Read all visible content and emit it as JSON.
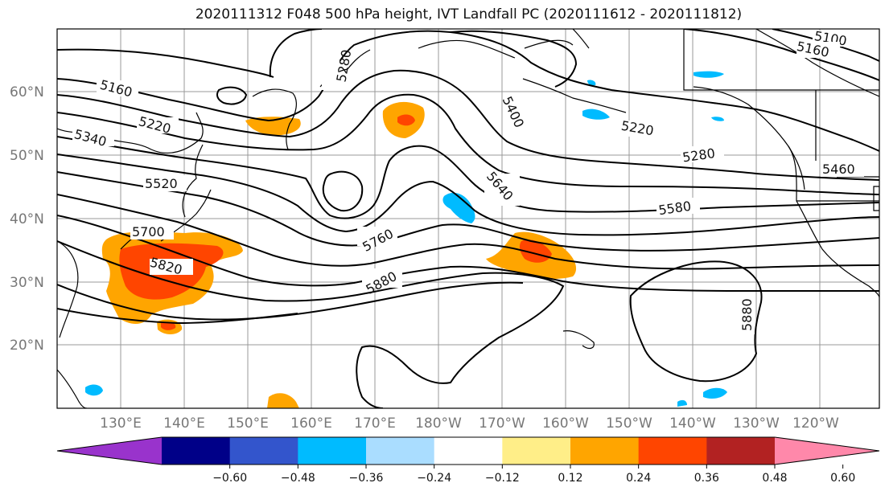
{
  "title": "2020111312 F048 500 hPa height, IVT Landfall PC (2020111612 - 2020111812)",
  "lat_labels": [
    "60°N",
    "50°N",
    "40°N",
    "30°N",
    "20°N"
  ],
  "lon_labels": [
    "130°E",
    "140°E",
    "150°E",
    "160°E",
    "170°E",
    "180°W",
    "170°W",
    "160°W",
    "150°W",
    "140°W",
    "130°W",
    "120°W"
  ],
  "contour_labels": [
    "5160",
    "5220",
    "5340",
    "5520",
    "5700",
    "5820",
    "5280",
    "5400",
    "5640",
    "5760",
    "5880",
    "5220",
    "5280",
    "5580",
    "5460",
    "5100",
    "5160",
    "5880"
  ],
  "colorbar": {
    "colors": [
      "#9933cc",
      "#000088",
      "#3355cc",
      "#00bbff",
      "#aaddff",
      "#ffffff",
      "#ffee88",
      "#ffa500",
      "#ff4500",
      "#b22222",
      "#ff88aa"
    ],
    "tick_labels": [
      "−0.60",
      "−0.48",
      "−0.36",
      "−0.24",
      "−0.12",
      "0.12",
      "0.24",
      "0.36",
      "0.48",
      "0.60"
    ]
  }
}
